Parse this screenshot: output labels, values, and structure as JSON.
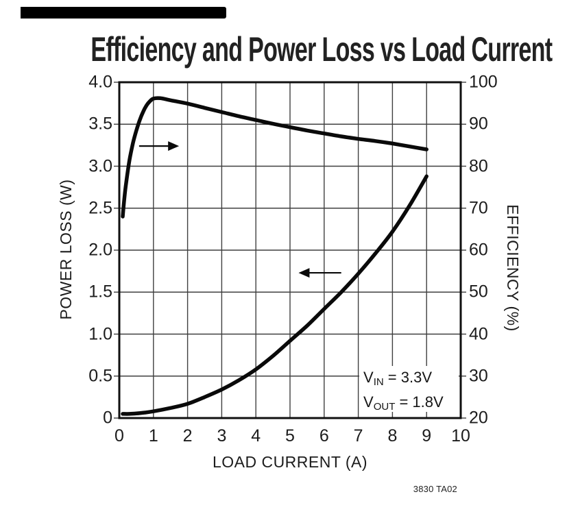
{
  "figure": {
    "footer_note": "3830 TA02"
  },
  "chart_data": {
    "type": "line",
    "title": "Efficiency and Power Loss vs Load Current",
    "xlabel": "LOAD CURRENT (A)",
    "ylabel_left": "POWER LOSS (W)",
    "ylabel_right": "EFFICIENCY (%)",
    "xlim": [
      0,
      10
    ],
    "ylim_left": [
      0,
      4.0
    ],
    "ylim_right": [
      20,
      100
    ],
    "x_ticks": [
      "0",
      "1",
      "2",
      "3",
      "4",
      "5",
      "6",
      "7",
      "8",
      "9",
      "10"
    ],
    "y_ticks_left": [
      "0",
      "0.5",
      "1.0",
      "1.5",
      "2.0",
      "2.5",
      "3.0",
      "3.5",
      "4.0"
    ],
    "y_ticks_right": [
      "20",
      "30",
      "40",
      "50",
      "60",
      "70",
      "80",
      "90",
      "100"
    ],
    "grid": true,
    "legend_position": "none",
    "series": [
      {
        "name": "Efficiency",
        "axis": "right",
        "x": [
          0.1,
          0.15,
          0.2,
          0.3,
          0.4,
          0.5,
          0.6,
          0.7,
          0.8,
          0.9,
          1.0,
          1.2,
          1.5,
          2.0,
          2.5,
          3.0,
          3.5,
          4.0,
          4.5,
          5.0,
          5.5,
          6.0,
          6.5,
          7.0,
          7.5,
          8.0,
          8.5,
          9.0
        ],
        "y": [
          68,
          72.5,
          76,
          81.5,
          85.5,
          88.5,
          91,
          93,
          94.5,
          95.5,
          96.1,
          96.2,
          95.7,
          94.9,
          93.9,
          92.9,
          91.9,
          91.0,
          90.1,
          89.3,
          88.5,
          87.8,
          87.1,
          86.5,
          86.0,
          85.4,
          84.7,
          84.0
        ],
        "pointer_arrow": {
          "direction": "right",
          "x_from": 0.58,
          "x_to": 1.75,
          "y_right": 84.8
        }
      },
      {
        "name": "Power Loss",
        "axis": "left",
        "x": [
          0.1,
          0.3,
          0.5,
          0.75,
          1.0,
          1.5,
          2.0,
          2.5,
          3.0,
          3.5,
          4.0,
          4.5,
          5.0,
          5.5,
          6.0,
          6.5,
          7.0,
          7.5,
          8.0,
          8.5,
          9.0
        ],
        "y": [
          0.05,
          0.05,
          0.055,
          0.065,
          0.08,
          0.12,
          0.17,
          0.25,
          0.34,
          0.45,
          0.58,
          0.74,
          0.92,
          1.1,
          1.3,
          1.5,
          1.72,
          1.96,
          2.22,
          2.53,
          2.88
        ],
        "pointer_arrow": {
          "direction": "left",
          "x_from": 6.5,
          "x_to": 5.25,
          "y_left": 1.73
        }
      }
    ],
    "annotation": {
      "lines": [
        {
          "base": "V",
          "sub": "IN",
          "rest": " = 3.3V"
        },
        {
          "base": "V",
          "sub": "OUT",
          "rest": " = 1.8V"
        }
      ]
    },
    "colors": {
      "curve": "#0a0a0a",
      "grid": "#3f3f3f",
      "border": "#101010",
      "text": "#1c1c1c",
      "background": "#ffffff"
    }
  }
}
